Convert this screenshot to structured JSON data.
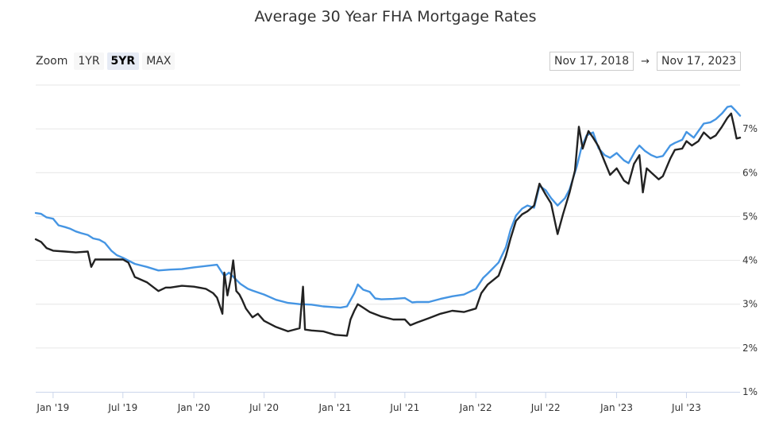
{
  "title": "Average 30 Year FHA Mortgage Rates",
  "zoom": {
    "label": "Zoom",
    "buttons": [
      "1YR",
      "5YR",
      "MAX"
    ],
    "active": "5YR"
  },
  "range": {
    "from": "Nov 17, 2018",
    "arrow": "→",
    "to": "Nov 17, 2023"
  },
  "colors": {
    "fha_index": "#4595e3",
    "fha_rate": "#222222",
    "grid": "#e6e6e6",
    "axis": "#ccd6eb"
  },
  "chart_data": {
    "type": "line",
    "x_axis": {
      "type": "date",
      "range": [
        "2018-11-17",
        "2023-11-17"
      ],
      "ticks": [
        {
          "date": "2019-01-01",
          "label": "Jan '19"
        },
        {
          "date": "2019-07-01",
          "label": "Jul '19"
        },
        {
          "date": "2020-01-01",
          "label": "Jan '20"
        },
        {
          "date": "2020-07-01",
          "label": "Jul '20"
        },
        {
          "date": "2021-01-01",
          "label": "Jan '21"
        },
        {
          "date": "2021-07-01",
          "label": "Jul '21"
        },
        {
          "date": "2022-01-01",
          "label": "Jan '22"
        },
        {
          "date": "2022-07-01",
          "label": "Jul '22"
        },
        {
          "date": "2023-01-01",
          "label": "Jan '23"
        },
        {
          "date": "2023-07-01",
          "label": "Jul '23"
        }
      ]
    },
    "y_axis": {
      "unit": "%",
      "range": [
        1,
        8
      ],
      "ticks": [
        {
          "value": 1,
          "label": "1%"
        },
        {
          "value": 2,
          "label": "2%"
        },
        {
          "value": 3,
          "label": "3%"
        },
        {
          "value": 4,
          "label": "4%"
        },
        {
          "value": 5,
          "label": "5%"
        },
        {
          "value": 6,
          "label": "6%"
        },
        {
          "value": 7,
          "label": "7%"
        }
      ],
      "position": "right"
    },
    "grid": true,
    "legend": "none",
    "series": [
      {
        "color": "#4595e3",
        "points": [
          [
            "2018-11-17",
            5.08
          ],
          [
            "2018-12-01",
            5.06
          ],
          [
            "2018-12-15",
            4.98
          ],
          [
            "2019-01-01",
            4.95
          ],
          [
            "2019-01-15",
            4.8
          ],
          [
            "2019-02-01",
            4.76
          ],
          [
            "2019-02-15",
            4.72
          ],
          [
            "2019-03-01",
            4.66
          ],
          [
            "2019-03-15",
            4.62
          ],
          [
            "2019-04-01",
            4.58
          ],
          [
            "2019-04-15",
            4.5
          ],
          [
            "2019-05-01",
            4.47
          ],
          [
            "2019-05-15",
            4.4
          ],
          [
            "2019-06-01",
            4.22
          ],
          [
            "2019-06-15",
            4.12
          ],
          [
            "2019-07-01",
            4.06
          ],
          [
            "2019-08-01",
            3.92
          ],
          [
            "2019-09-01",
            3.85
          ],
          [
            "2019-10-01",
            3.77
          ],
          [
            "2019-11-01",
            3.79
          ],
          [
            "2019-12-01",
            3.8
          ],
          [
            "2020-01-01",
            3.84
          ],
          [
            "2020-02-01",
            3.87
          ],
          [
            "2020-03-01",
            3.9
          ],
          [
            "2020-03-20",
            3.64
          ],
          [
            "2020-04-01",
            3.72
          ],
          [
            "2020-05-01",
            3.46
          ],
          [
            "2020-05-20",
            3.35
          ],
          [
            "2020-06-01",
            3.31
          ],
          [
            "2020-07-01",
            3.22
          ],
          [
            "2020-08-01",
            3.1
          ],
          [
            "2020-09-01",
            3.03
          ],
          [
            "2020-10-01",
            3.0
          ],
          [
            "2020-11-01",
            2.99
          ],
          [
            "2020-12-01",
            2.95
          ],
          [
            "2021-01-01",
            2.93
          ],
          [
            "2021-01-15",
            2.92
          ],
          [
            "2021-02-01",
            2.95
          ],
          [
            "2021-02-20",
            3.25
          ],
          [
            "2021-03-01",
            3.45
          ],
          [
            "2021-03-15",
            3.33
          ],
          [
            "2021-04-01",
            3.28
          ],
          [
            "2021-04-15",
            3.13
          ],
          [
            "2021-05-01",
            3.11
          ],
          [
            "2021-06-01",
            3.12
          ],
          [
            "2021-07-01",
            3.14
          ],
          [
            "2021-07-20",
            3.04
          ],
          [
            "2021-08-01",
            3.05
          ],
          [
            "2021-09-01",
            3.05
          ],
          [
            "2021-10-01",
            3.12
          ],
          [
            "2021-11-01",
            3.18
          ],
          [
            "2021-12-01",
            3.22
          ],
          [
            "2022-01-01",
            3.35
          ],
          [
            "2022-01-20",
            3.6
          ],
          [
            "2022-02-01",
            3.7
          ],
          [
            "2022-03-01",
            3.95
          ],
          [
            "2022-03-20",
            4.3
          ],
          [
            "2022-04-01",
            4.7
          ],
          [
            "2022-04-15",
            5.02
          ],
          [
            "2022-05-01",
            5.18
          ],
          [
            "2022-05-15",
            5.25
          ],
          [
            "2022-06-01",
            5.2
          ],
          [
            "2022-06-15",
            5.7
          ],
          [
            "2022-07-01",
            5.6
          ],
          [
            "2022-07-15",
            5.42
          ],
          [
            "2022-08-01",
            5.25
          ],
          [
            "2022-08-20",
            5.42
          ],
          [
            "2022-09-01",
            5.62
          ],
          [
            "2022-09-20",
            6.15
          ],
          [
            "2022-10-01",
            6.55
          ],
          [
            "2022-10-15",
            6.85
          ],
          [
            "2022-11-01",
            6.92
          ],
          [
            "2022-11-15",
            6.56
          ],
          [
            "2022-12-01",
            6.4
          ],
          [
            "2022-12-15",
            6.34
          ],
          [
            "2023-01-01",
            6.45
          ],
          [
            "2023-01-20",
            6.28
          ],
          [
            "2023-02-01",
            6.22
          ],
          [
            "2023-02-20",
            6.52
          ],
          [
            "2023-03-01",
            6.62
          ],
          [
            "2023-03-15",
            6.5
          ],
          [
            "2023-04-01",
            6.4
          ],
          [
            "2023-04-15",
            6.35
          ],
          [
            "2023-05-01",
            6.38
          ],
          [
            "2023-05-20",
            6.62
          ],
          [
            "2023-06-01",
            6.68
          ],
          [
            "2023-06-20",
            6.75
          ],
          [
            "2023-07-01",
            6.93
          ],
          [
            "2023-07-20",
            6.8
          ],
          [
            "2023-08-01",
            6.95
          ],
          [
            "2023-08-15",
            7.12
          ],
          [
            "2023-09-01",
            7.15
          ],
          [
            "2023-09-15",
            7.22
          ],
          [
            "2023-10-01",
            7.35
          ],
          [
            "2023-10-15",
            7.5
          ],
          [
            "2023-10-25",
            7.52
          ],
          [
            "2023-11-05",
            7.42
          ],
          [
            "2023-11-17",
            7.3
          ]
        ]
      },
      {
        "color": "#222222",
        "points": [
          [
            "2018-11-17",
            4.48
          ],
          [
            "2018-12-01",
            4.42
          ],
          [
            "2018-12-15",
            4.28
          ],
          [
            "2019-01-01",
            4.22
          ],
          [
            "2019-02-01",
            4.2
          ],
          [
            "2019-03-01",
            4.18
          ],
          [
            "2019-04-01",
            4.2
          ],
          [
            "2019-04-10",
            3.85
          ],
          [
            "2019-04-20",
            4.02
          ],
          [
            "2019-05-15",
            4.02
          ],
          [
            "2019-06-01",
            4.02
          ],
          [
            "2019-07-01",
            4.02
          ],
          [
            "2019-07-15",
            3.95
          ],
          [
            "2019-08-01",
            3.62
          ],
          [
            "2019-09-01",
            3.5
          ],
          [
            "2019-10-01",
            3.3
          ],
          [
            "2019-10-20",
            3.38
          ],
          [
            "2019-11-01",
            3.38
          ],
          [
            "2019-12-01",
            3.42
          ],
          [
            "2020-01-01",
            3.4
          ],
          [
            "2020-02-01",
            3.35
          ],
          [
            "2020-02-20",
            3.25
          ],
          [
            "2020-03-01",
            3.15
          ],
          [
            "2020-03-15",
            2.78
          ],
          [
            "2020-03-20",
            3.72
          ],
          [
            "2020-03-28",
            3.2
          ],
          [
            "2020-04-05",
            3.55
          ],
          [
            "2020-04-12",
            4.0
          ],
          [
            "2020-04-20",
            3.3
          ],
          [
            "2020-04-28",
            3.22
          ],
          [
            "2020-05-05",
            3.1
          ],
          [
            "2020-05-15",
            2.9
          ],
          [
            "2020-06-01",
            2.7
          ],
          [
            "2020-06-15",
            2.78
          ],
          [
            "2020-07-01",
            2.62
          ],
          [
            "2020-08-01",
            2.48
          ],
          [
            "2020-09-01",
            2.38
          ],
          [
            "2020-10-01",
            2.45
          ],
          [
            "2020-10-10",
            3.4
          ],
          [
            "2020-10-15",
            2.42
          ],
          [
            "2020-11-01",
            2.4
          ],
          [
            "2020-12-01",
            2.38
          ],
          [
            "2021-01-01",
            2.3
          ],
          [
            "2021-02-01",
            2.28
          ],
          [
            "2021-02-10",
            2.65
          ],
          [
            "2021-02-20",
            2.85
          ],
          [
            "2021-03-01",
            3.0
          ],
          [
            "2021-03-15",
            2.92
          ],
          [
            "2021-04-01",
            2.82
          ],
          [
            "2021-05-01",
            2.72
          ],
          [
            "2021-06-01",
            2.65
          ],
          [
            "2021-07-01",
            2.65
          ],
          [
            "2021-07-15",
            2.52
          ],
          [
            "2021-08-01",
            2.58
          ],
          [
            "2021-09-01",
            2.68
          ],
          [
            "2021-10-01",
            2.78
          ],
          [
            "2021-11-01",
            2.85
          ],
          [
            "2021-12-01",
            2.82
          ],
          [
            "2022-01-01",
            2.9
          ],
          [
            "2022-01-15",
            3.25
          ],
          [
            "2022-02-01",
            3.45
          ],
          [
            "2022-03-01",
            3.65
          ],
          [
            "2022-03-20",
            4.1
          ],
          [
            "2022-04-01",
            4.5
          ],
          [
            "2022-04-15",
            4.9
          ],
          [
            "2022-05-01",
            5.05
          ],
          [
            "2022-05-15",
            5.12
          ],
          [
            "2022-06-01",
            5.25
          ],
          [
            "2022-06-15",
            5.75
          ],
          [
            "2022-07-01",
            5.5
          ],
          [
            "2022-07-15",
            5.3
          ],
          [
            "2022-08-01",
            4.6
          ],
          [
            "2022-08-15",
            5.05
          ],
          [
            "2022-09-01",
            5.55
          ],
          [
            "2022-09-15",
            6.05
          ],
          [
            "2022-09-25",
            7.05
          ],
          [
            "2022-10-05",
            6.55
          ],
          [
            "2022-10-20",
            6.95
          ],
          [
            "2022-11-01",
            6.8
          ],
          [
            "2022-11-15",
            6.6
          ],
          [
            "2022-12-01",
            6.25
          ],
          [
            "2022-12-15",
            5.95
          ],
          [
            "2023-01-01",
            6.1
          ],
          [
            "2023-01-20",
            5.82
          ],
          [
            "2023-02-01",
            5.75
          ],
          [
            "2023-02-15",
            6.2
          ],
          [
            "2023-03-01",
            6.4
          ],
          [
            "2023-03-10",
            5.55
          ],
          [
            "2023-03-20",
            6.1
          ],
          [
            "2023-04-01",
            6.0
          ],
          [
            "2023-04-20",
            5.85
          ],
          [
            "2023-05-01",
            5.92
          ],
          [
            "2023-05-20",
            6.32
          ],
          [
            "2023-06-01",
            6.52
          ],
          [
            "2023-06-20",
            6.55
          ],
          [
            "2023-07-01",
            6.72
          ],
          [
            "2023-07-15",
            6.62
          ],
          [
            "2023-08-01",
            6.72
          ],
          [
            "2023-08-15",
            6.92
          ],
          [
            "2023-09-01",
            6.78
          ],
          [
            "2023-09-15",
            6.85
          ],
          [
            "2023-10-01",
            7.05
          ],
          [
            "2023-10-15",
            7.25
          ],
          [
            "2023-10-25",
            7.35
          ],
          [
            "2023-11-01",
            7.08
          ],
          [
            "2023-11-08",
            6.78
          ],
          [
            "2023-11-17",
            6.8
          ]
        ]
      }
    ]
  }
}
